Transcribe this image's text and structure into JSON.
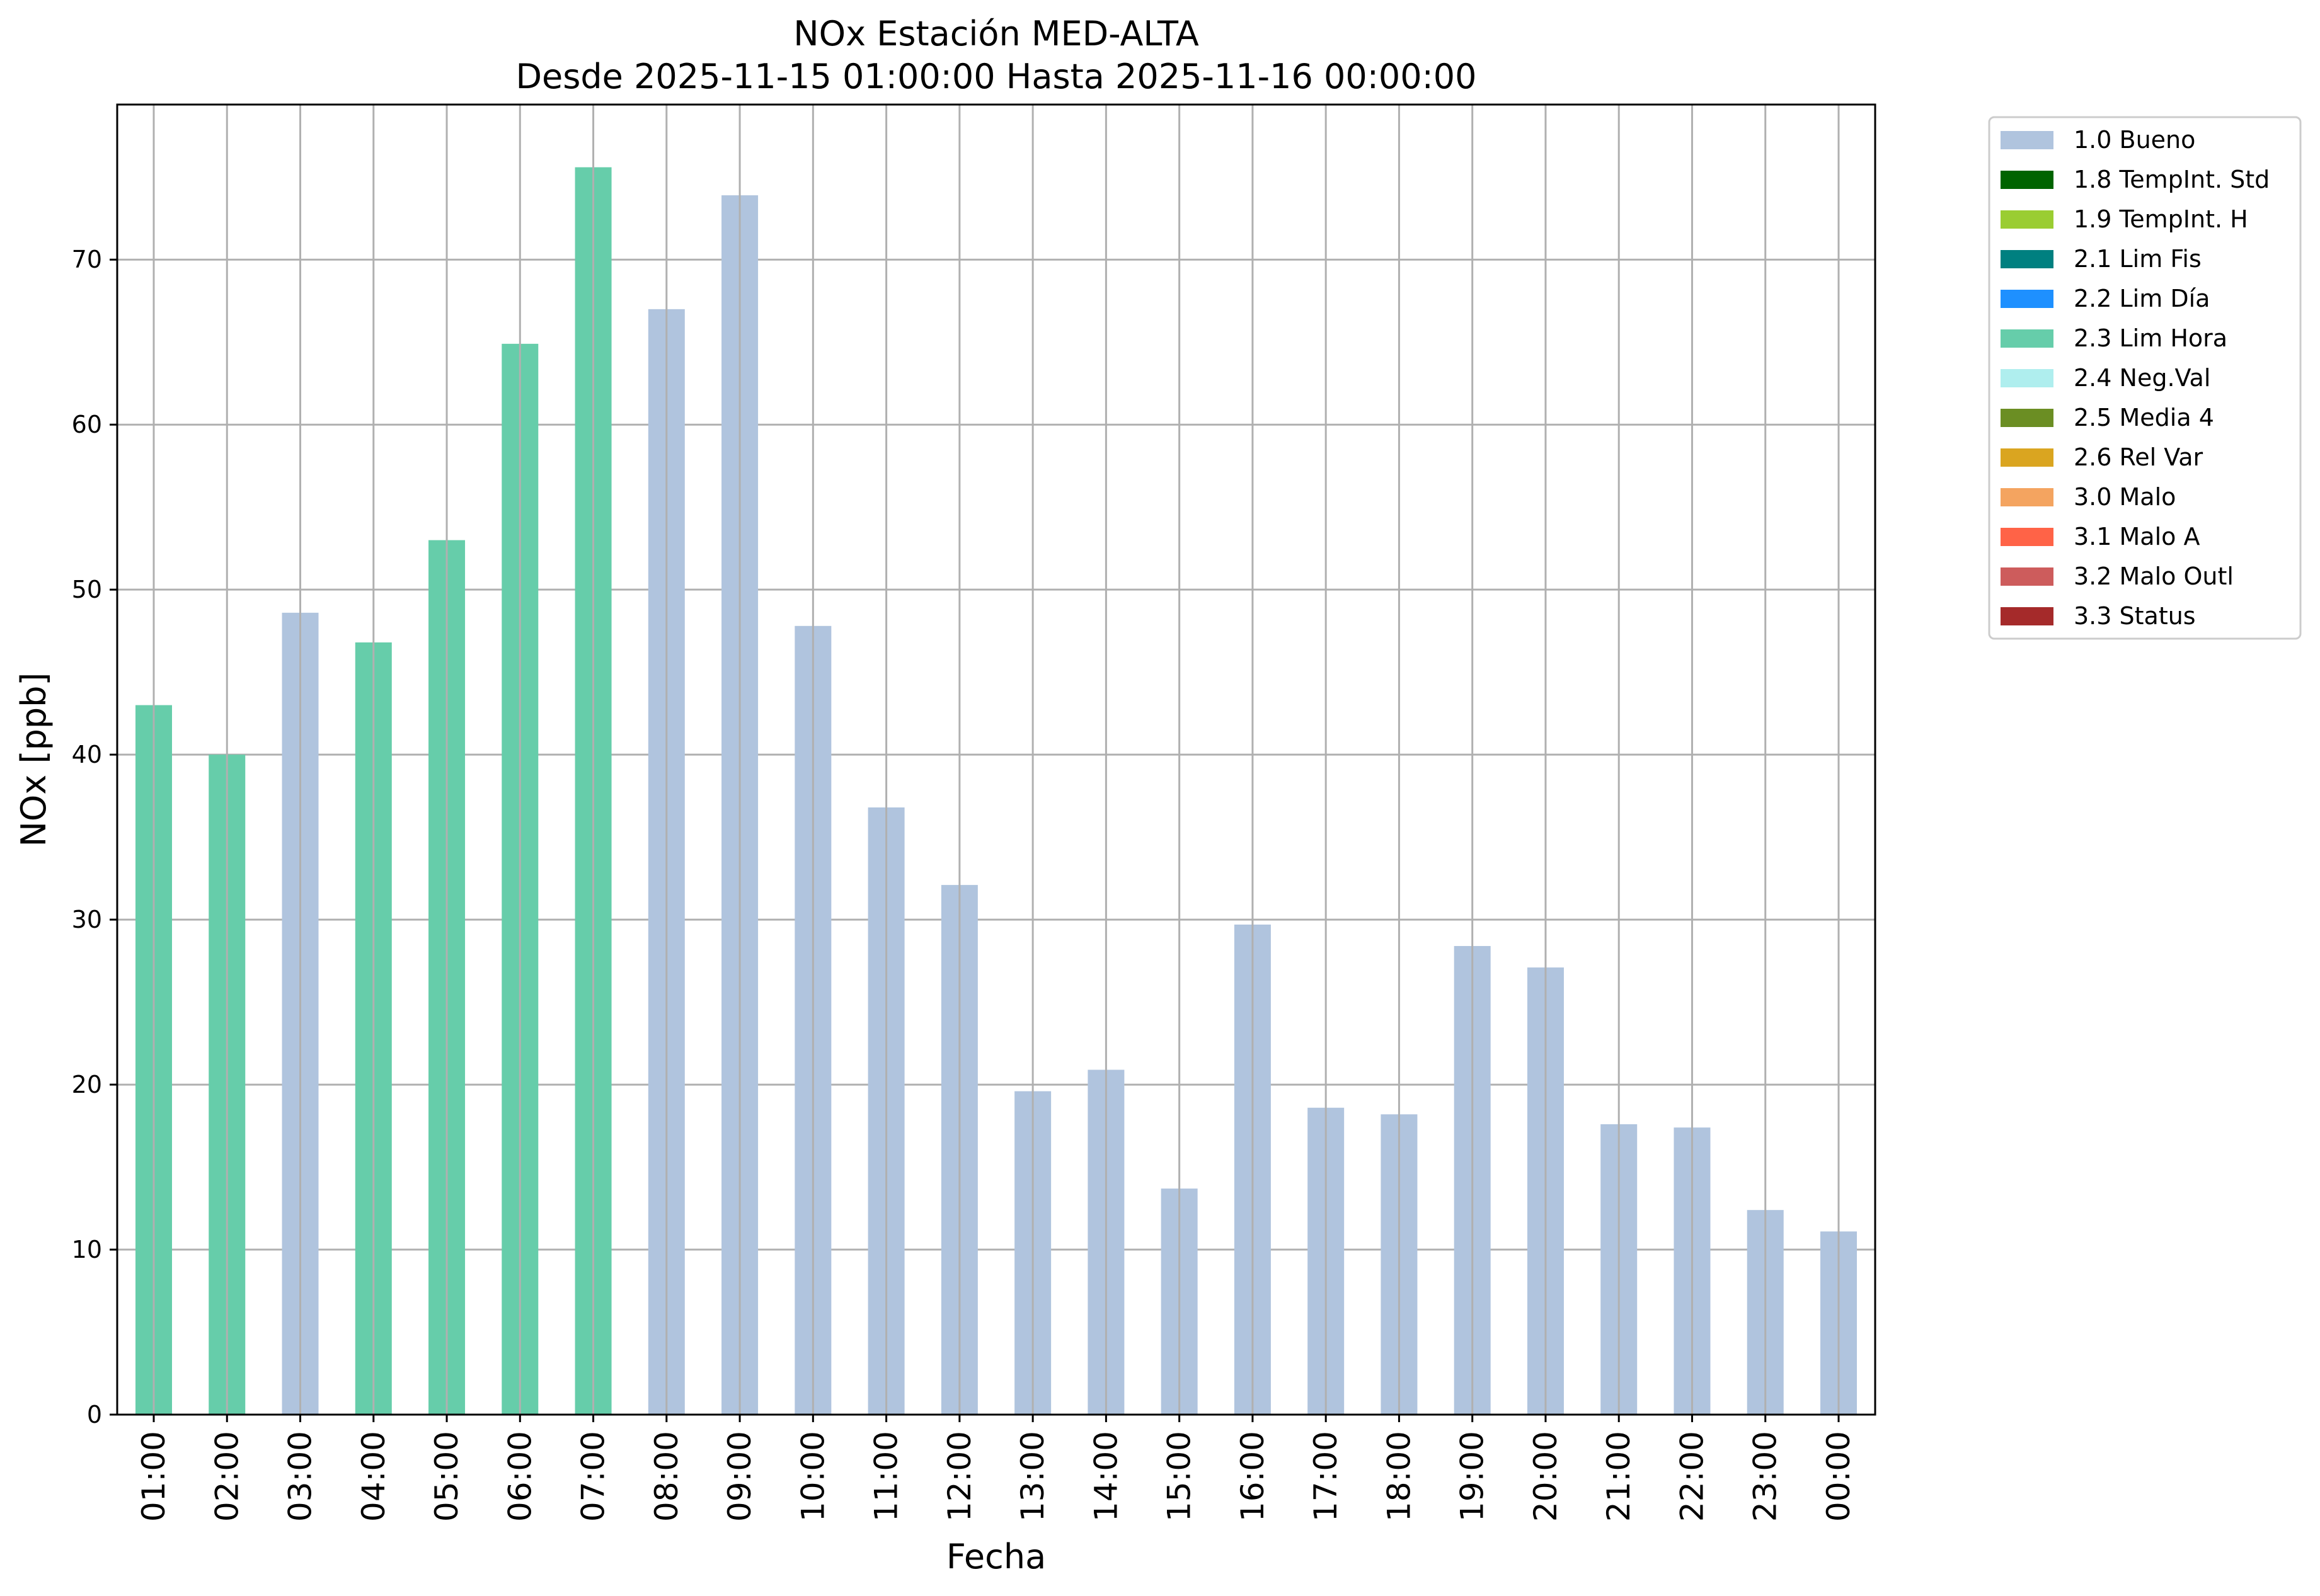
{
  "chart_data": {
    "type": "bar",
    "title": "NOx Estación MED-ALTA",
    "subtitle": "Desde 2025-11-15 01:00:00 Hasta 2025-11-16 00:00:00",
    "xlabel": "Fecha",
    "ylabel": "NOx [ppb]",
    "ylim": [
      0,
      79.4
    ],
    "yticks": [
      0,
      10,
      20,
      30,
      40,
      50,
      60,
      70
    ],
    "grid": true,
    "legend_position": "outside-top-right",
    "categories": [
      "01:00",
      "02:00",
      "03:00",
      "04:00",
      "05:00",
      "06:00",
      "07:00",
      "08:00",
      "09:00",
      "10:00",
      "11:00",
      "12:00",
      "13:00",
      "14:00",
      "15:00",
      "16:00",
      "17:00",
      "18:00",
      "19:00",
      "20:00",
      "21:00",
      "22:00",
      "23:00",
      "00:00"
    ],
    "values": [
      43.0,
      40.0,
      48.6,
      46.8,
      53.0,
      64.9,
      75.6,
      67.0,
      73.9,
      47.8,
      36.8,
      32.1,
      19.6,
      20.9,
      13.7,
      29.7,
      18.6,
      18.2,
      28.4,
      27.1,
      17.6,
      17.4,
      12.4,
      11.1
    ],
    "flags": [
      "2.3 Lim Hora",
      "2.3 Lim Hora",
      "1.0 Bueno",
      "2.3 Lim Hora",
      "2.3 Lim Hora",
      "2.3 Lim Hora",
      "2.3 Lim Hora",
      "1.0 Bueno",
      "1.0 Bueno",
      "1.0 Bueno",
      "1.0 Bueno",
      "1.0 Bueno",
      "1.0 Bueno",
      "1.0 Bueno",
      "1.0 Bueno",
      "1.0 Bueno",
      "1.0 Bueno",
      "1.0 Bueno",
      "1.0 Bueno",
      "1.0 Bueno",
      "1.0 Bueno",
      "1.0 Bueno",
      "1.0 Bueno",
      "1.0 Bueno"
    ],
    "legend": [
      {
        "label": "1.0 Bueno",
        "color": "#b0c4de"
      },
      {
        "label": "1.8 TempInt. Std",
        "color": "#006400"
      },
      {
        "label": "1.9 TempInt. H",
        "color": "#9acd32"
      },
      {
        "label": "2.1 Lim Fis",
        "color": "#008080"
      },
      {
        "label": "2.2 Lim Día",
        "color": "#1e90ff"
      },
      {
        "label": "2.3 Lim Hora",
        "color": "#66cdaa"
      },
      {
        "label": "2.4 Neg.Val",
        "color": "#afeeee"
      },
      {
        "label": "2.5 Media 4",
        "color": "#6b8e23"
      },
      {
        "label": "2.6 Rel Var",
        "color": "#daa520"
      },
      {
        "label": "3.0 Malo",
        "color": "#f4a460"
      },
      {
        "label": "3.1 Malo A",
        "color": "#ff6347"
      },
      {
        "label": "3.2 Malo Outl",
        "color": "#cd5c5c"
      },
      {
        "label": "3.3 Status",
        "color": "#a52a2a"
      }
    ]
  }
}
